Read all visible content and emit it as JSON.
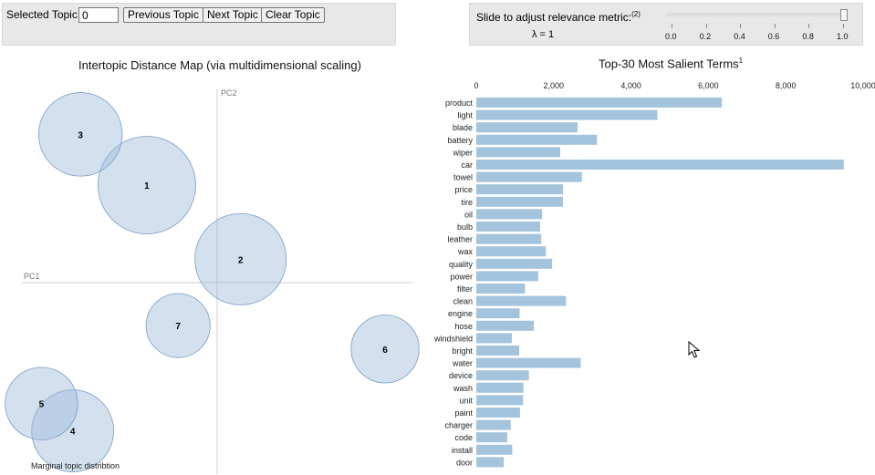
{
  "topic_panel": {
    "selected_label": "Selected Topic:",
    "selected_value": "0",
    "prev_label": "Previous Topic",
    "next_label": "Next Topic",
    "clear_label": "Clear Topic"
  },
  "lambda_panel": {
    "label": "Slide to adjust relevance metric:",
    "footnote": "(2)",
    "lambda_text": "λ = 1",
    "slider_value": 1.0,
    "ticks": [
      "0.0",
      "0.2",
      "0.4",
      "0.6",
      "0.8",
      "1.0"
    ]
  },
  "left_chart": {
    "title": "Intertopic Distance Map (via multidimensional scaling)",
    "pc1": "PC1",
    "pc2": "PC2",
    "caption": "Marginal topic distribtion"
  },
  "right_chart": {
    "title": "Top-30 Most Salient Terms",
    "title_sup": "1"
  },
  "colors": {
    "bubble_fill": "#9ebcdb",
    "bubble_stroke": "#7a9cc4",
    "bar_fill": "#a3c4dc",
    "panel_bg": "#e8e8e8"
  },
  "chart_data": [
    {
      "type": "scatter",
      "title": "Intertopic Distance Map (via multidimensional scaling)",
      "xlabel": "PC1",
      "ylabel": "PC2",
      "xlim": [
        -0.5,
        0.5
      ],
      "ylim": [
        -0.5,
        0.5
      ],
      "points": [
        {
          "label": "1",
          "x": -0.18,
          "y": 0.25,
          "r": 0.125
        },
        {
          "label": "2",
          "x": 0.06,
          "y": 0.06,
          "r": 0.117
        },
        {
          "label": "3",
          "x": -0.35,
          "y": 0.38,
          "r": 0.107
        },
        {
          "label": "4",
          "x": -0.37,
          "y": -0.38,
          "r": 0.105
        },
        {
          "label": "5",
          "x": -0.45,
          "y": -0.31,
          "r": 0.093
        },
        {
          "label": "6",
          "x": 0.43,
          "y": -0.17,
          "r": 0.087
        },
        {
          "label": "7",
          "x": -0.1,
          "y": -0.11,
          "r": 0.082
        }
      ],
      "caption": "Marginal topic distribtion"
    },
    {
      "type": "bar",
      "orientation": "horizontal",
      "title": "Top-30 Most Salient Terms",
      "xlim": [
        0,
        10000
      ],
      "xticks": [
        0,
        2000,
        4000,
        6000,
        8000,
        10000
      ],
      "xtick_labels": [
        "0",
        "2,000",
        "4,000",
        "6,000",
        "8,000",
        "10,000"
      ],
      "categories": [
        "product",
        "light",
        "blade",
        "battery",
        "wiper",
        "car",
        "towel",
        "price",
        "tire",
        "oil",
        "bulb",
        "leather",
        "wax",
        "quality",
        "power",
        "filter",
        "clean",
        "engine",
        "hose",
        "windshield",
        "bright",
        "water",
        "device",
        "wash",
        "unit",
        "paint",
        "charger",
        "code",
        "install",
        "door"
      ],
      "values": [
        6350,
        4680,
        2620,
        3120,
        2170,
        9500,
        2730,
        2240,
        2240,
        1700,
        1650,
        1680,
        1800,
        1960,
        1600,
        1260,
        2320,
        1120,
        1490,
        920,
        1110,
        2700,
        1360,
        1220,
        1210,
        1130,
        890,
        800,
        930,
        710
      ]
    }
  ]
}
